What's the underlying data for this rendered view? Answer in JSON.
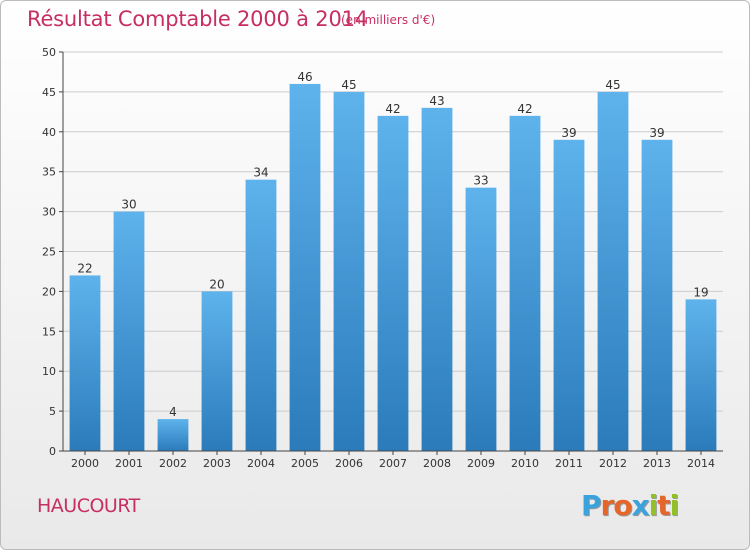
{
  "title": "Résultat Comptable 2000 à 2014",
  "subtitle": "(en milliers d'€)",
  "commune": "HAUCOURT",
  "logo": {
    "letters": [
      "P",
      "r",
      "o",
      "x",
      "i",
      "t",
      "i"
    ],
    "colors": [
      "#3aa2dc",
      "#e4662a",
      "#e4662a",
      "#3aa2dc",
      "#93c029",
      "#e4662a",
      "#93c029"
    ]
  },
  "chart_data": {
    "type": "bar",
    "title": "Résultat Comptable 2000 à 2014",
    "ylabel": "",
    "xlabel": "",
    "ylim": [
      0,
      50
    ],
    "yticks": [
      0,
      5,
      10,
      15,
      20,
      25,
      30,
      35,
      40,
      45,
      50
    ],
    "categories": [
      "2000",
      "2001",
      "2002",
      "2003",
      "2004",
      "2005",
      "2006",
      "2007",
      "2008",
      "2009",
      "2010",
      "2011",
      "2012",
      "2013",
      "2014"
    ],
    "values": [
      22,
      30,
      4,
      20,
      34,
      46,
      45,
      42,
      43,
      33,
      42,
      39,
      45,
      39,
      19
    ],
    "colors": {
      "bar_top": "#5eb3ec",
      "bar_bottom": "#2b7bbb",
      "grid": "#cccccc",
      "axis": "#444444"
    }
  }
}
